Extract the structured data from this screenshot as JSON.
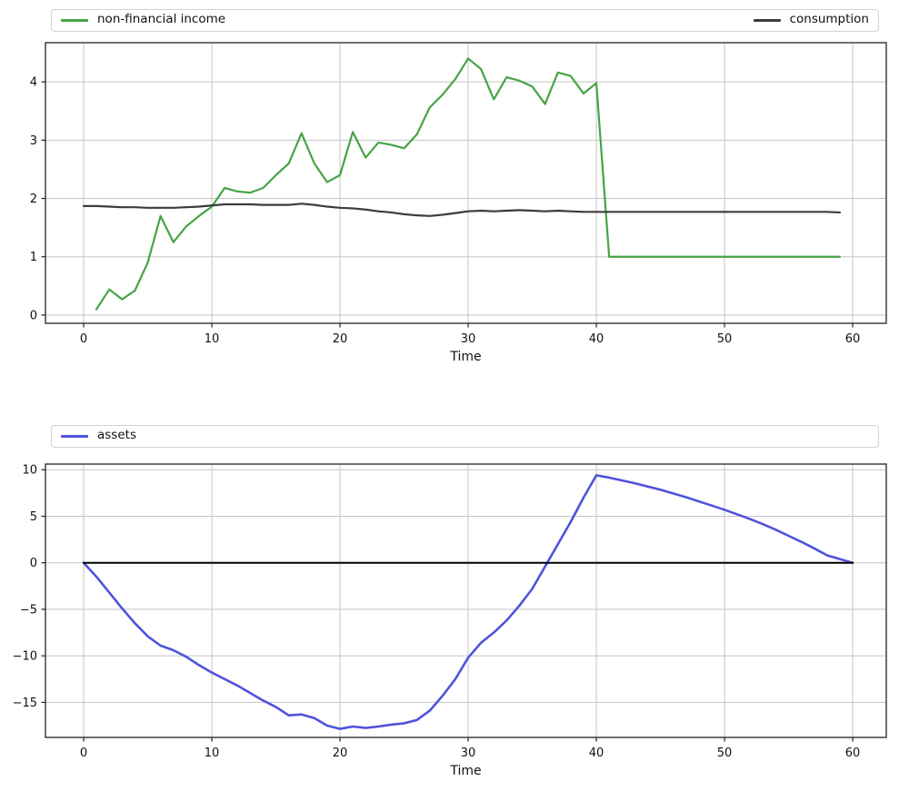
{
  "figure": {
    "background": "#ffffff",
    "grid_color": "#c4c4c4",
    "spine_color": "#222222",
    "tick_text_color": "#111111"
  },
  "chart_data": [
    {
      "type": "line",
      "title": "",
      "xlabel": "Time",
      "ylabel": "",
      "grid": true,
      "legend_position": "top, full-width, two columns",
      "x_ticks": [
        0,
        10,
        20,
        30,
        40,
        50,
        60
      ],
      "y_ticks": [
        0,
        1,
        2,
        3,
        4
      ],
      "xlim": [
        -2.98,
        62.62
      ],
      "ylim": [
        -0.141,
        4.672
      ],
      "series": [
        {
          "name": "non-financial income",
          "color": "#46a346",
          "width": 2.2,
          "in_legend": true,
          "x": [
            1,
            2,
            3,
            4,
            5,
            6,
            7,
            8,
            9,
            10,
            11,
            12,
            13,
            14,
            15,
            16,
            17,
            18,
            19,
            20,
            21,
            22,
            23,
            24,
            25,
            26,
            27,
            28,
            29,
            30,
            31,
            32,
            33,
            34,
            35,
            36,
            37,
            38,
            39,
            40,
            41,
            42,
            43,
            44,
            45,
            46,
            47,
            48,
            49,
            50,
            51,
            52,
            53,
            54,
            55,
            56,
            57,
            58,
            59
          ],
          "values": [
            0.1,
            0.44,
            0.27,
            0.42,
            0.9,
            1.7,
            1.25,
            1.52,
            1.7,
            1.86,
            2.18,
            2.12,
            2.1,
            2.18,
            2.4,
            2.6,
            3.12,
            2.6,
            2.28,
            2.4,
            3.14,
            2.7,
            2.96,
            2.92,
            2.86,
            3.1,
            3.56,
            3.78,
            4.05,
            4.4,
            4.22,
            3.7,
            4.08,
            4.02,
            3.92,
            3.62,
            4.16,
            4.1,
            3.8,
            3.98,
            1.0,
            1.0,
            1.0,
            1.0,
            1.0,
            1.0,
            1.0,
            1.0,
            1.0,
            1.0,
            1.0,
            1.0,
            1.0,
            1.0,
            1.0,
            1.0,
            1.0,
            1.0,
            1.0
          ]
        },
        {
          "name": "consumption",
          "color": "#3c3c3c",
          "width": 2.2,
          "in_legend": true,
          "x": [
            0,
            1,
            2,
            3,
            4,
            5,
            6,
            7,
            8,
            9,
            10,
            11,
            12,
            13,
            14,
            15,
            16,
            17,
            18,
            19,
            20,
            21,
            22,
            23,
            24,
            25,
            26,
            27,
            28,
            29,
            30,
            31,
            32,
            33,
            34,
            35,
            36,
            37,
            38,
            39,
            40,
            41,
            42,
            43,
            44,
            45,
            46,
            47,
            48,
            49,
            50,
            51,
            52,
            53,
            54,
            55,
            56,
            57,
            58,
            59
          ],
          "values": [
            1.87,
            1.87,
            1.86,
            1.85,
            1.85,
            1.84,
            1.84,
            1.84,
            1.85,
            1.86,
            1.88,
            1.9,
            1.9,
            1.9,
            1.89,
            1.89,
            1.89,
            1.91,
            1.89,
            1.86,
            1.84,
            1.83,
            1.81,
            1.78,
            1.76,
            1.73,
            1.71,
            1.7,
            1.72,
            1.75,
            1.78,
            1.79,
            1.78,
            1.79,
            1.8,
            1.79,
            1.78,
            1.79,
            1.78,
            1.77,
            1.77,
            1.77,
            1.77,
            1.77,
            1.77,
            1.77,
            1.77,
            1.77,
            1.77,
            1.77,
            1.77,
            1.77,
            1.77,
            1.77,
            1.77,
            1.77,
            1.77,
            1.77,
            1.77,
            1.76
          ]
        }
      ]
    },
    {
      "type": "line",
      "title": "",
      "xlabel": "Time",
      "ylabel": "",
      "grid": true,
      "legend_position": "top, full-width, left-aligned",
      "x_ticks": [
        0,
        10,
        20,
        30,
        40,
        50,
        60
      ],
      "y_ticks": [
        10,
        5,
        0,
        -5,
        -10,
        -15
      ],
      "xlim": [
        -2.98,
        62.62
      ],
      "ylim": [
        -18.77,
        10.61
      ],
      "series": [
        {
          "name": "assets",
          "color": "#5053db",
          "width": 2.6,
          "in_legend": true,
          "x": [
            0,
            1,
            2,
            3,
            4,
            5,
            6,
            7,
            8,
            9,
            10,
            11,
            12,
            13,
            14,
            15,
            16,
            17,
            18,
            19,
            20,
            21,
            22,
            23,
            24,
            25,
            26,
            27,
            28,
            29,
            30,
            31,
            32,
            33,
            34,
            35,
            36,
            37,
            38,
            39,
            40,
            41,
            42,
            43,
            44,
            45,
            46,
            47,
            48,
            49,
            50,
            51,
            52,
            53,
            54,
            55,
            56,
            57,
            58,
            59,
            60
          ],
          "values": [
            0.0,
            -1.5,
            -3.2,
            -4.9,
            -6.5,
            -7.9,
            -8.9,
            -9.4,
            -10.1,
            -11.0,
            -11.8,
            -12.5,
            -13.2,
            -14.0,
            -14.8,
            -15.5,
            -16.4,
            -16.3,
            -16.7,
            -17.5,
            -17.85,
            -17.6,
            -17.75,
            -17.6,
            -17.4,
            -17.25,
            -16.9,
            -15.9,
            -14.3,
            -12.5,
            -10.2,
            -8.6,
            -7.5,
            -6.2,
            -4.6,
            -2.8,
            -0.4,
            2.0,
            4.4,
            7.0,
            9.4,
            9.15,
            8.85,
            8.55,
            8.2,
            7.85,
            7.45,
            7.05,
            6.6,
            6.15,
            5.7,
            5.2,
            4.7,
            4.15,
            3.55,
            2.9,
            2.25,
            1.55,
            0.8,
            0.4,
            0.0
          ]
        },
        {
          "name": "zero line",
          "color": "#000000",
          "width": 2.0,
          "in_legend": false,
          "x": [
            0,
            60
          ],
          "values": [
            0,
            0
          ]
        }
      ]
    }
  ]
}
